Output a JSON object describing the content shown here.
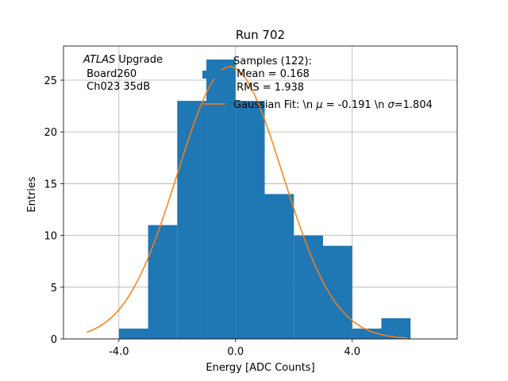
{
  "chart_data": {
    "type": "bar",
    "title": "Run 702",
    "xlabel": "Energy [ADC Counts]",
    "ylabel": "Entries",
    "xlim": [
      -5.9,
      7.6
    ],
    "ylim": [
      0,
      28.3
    ],
    "xticks": [
      -4.0,
      0.0,
      4.0
    ],
    "xtick_labels": [
      "-4.0",
      "0.0",
      "4.0"
    ],
    "yticks": [
      0,
      5,
      10,
      15,
      20,
      25
    ],
    "ytick_labels": [
      "0",
      "5",
      "10",
      "15",
      "20",
      "25"
    ],
    "grid": true,
    "bin_edges": [
      -4,
      -3,
      -2,
      -1,
      0,
      1,
      2,
      3,
      4,
      5,
      6
    ],
    "values": [
      1,
      11,
      23,
      27,
      23,
      14,
      10,
      9,
      1,
      2
    ],
    "bar_color": "#1f77b4",
    "fit": {
      "name": "Gaussian Fit",
      "mu": -0.191,
      "sigma": 1.804,
      "amplitude": 26.3,
      "x_range": [
        -5.1,
        5.9
      ],
      "color": "#ff7f0e"
    },
    "legend": {
      "placement": "top-right",
      "samples_lines": [
        "Samples (122):",
        " Mean = 0.168",
        " RMS = 1.938"
      ],
      "fit_text_pre": "Gaussian Fit: \\n ",
      "fit_mu_symbol": "μ",
      "fit_mu_text": " = -0.191 \\n ",
      "fit_sigma_symbol": "σ",
      "fit_sigma_text": "=1.804"
    },
    "annotation": {
      "atlas": "ATLAS",
      "upgrade": " Upgrade",
      "line2": " Board260",
      "line3": " Ch023 35dB"
    }
  }
}
